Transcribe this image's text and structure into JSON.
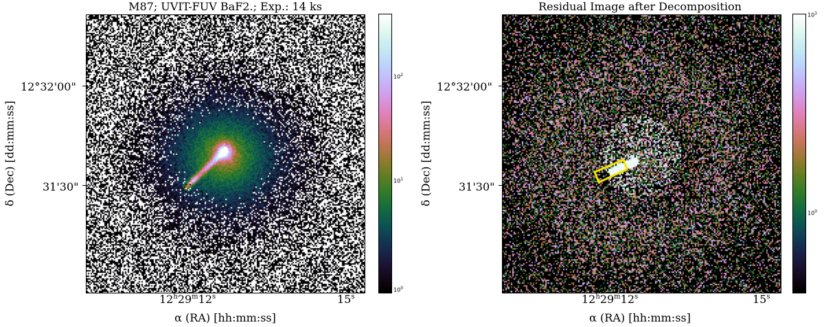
{
  "left_panel": {
    "title": "M87; UVIT-FUV BaF2.; Exp.: 14 ks",
    "ylabel": "δ (Dec) [dd:mm:ss]",
    "xlabel": "α (RA) [hh:mm:ss]",
    "y_ticks": [
      "12°32'00\"",
      "31'30\""
    ],
    "x_tick_main": "12",
    "x_tick_h": "h",
    "x_tick_min": "29",
    "x_tick_m": "m",
    "x_tick_sec": "12",
    "x_tick_s": "s",
    "x_tick_right": "15",
    "x_tick_right_s": "s",
    "colorbar_ticks": [
      {
        "base": "10",
        "exp": "2",
        "value": 100
      },
      {
        "base": "10",
        "exp": "1",
        "value": 10
      },
      {
        "base": "10",
        "exp": "0",
        "value": 1
      }
    ],
    "colorbar_scale": "log"
  },
  "right_panel": {
    "title": "Residual Image after Decomposition",
    "ylabel": "δ (Dec) [dd:mm:ss]",
    "xlabel": "α (RA) [hh:mm:ss]",
    "y_ticks": [
      "12°32'00\"",
      "31'30\""
    ],
    "x_tick_main": "12",
    "x_tick_h": "h",
    "x_tick_min": "29",
    "x_tick_m": "m",
    "x_tick_sec": "12",
    "x_tick_s": "s",
    "x_tick_right": "15",
    "x_tick_right_s": "s",
    "colorbar_ticks": [
      {
        "base": "10",
        "exp": "1",
        "value": 10
      },
      {
        "base": "10",
        "exp": "0",
        "value": 1
      }
    ],
    "colorbar_scale": "log",
    "highlight_color": "#f5e400"
  },
  "colormap": "cubehelix"
}
